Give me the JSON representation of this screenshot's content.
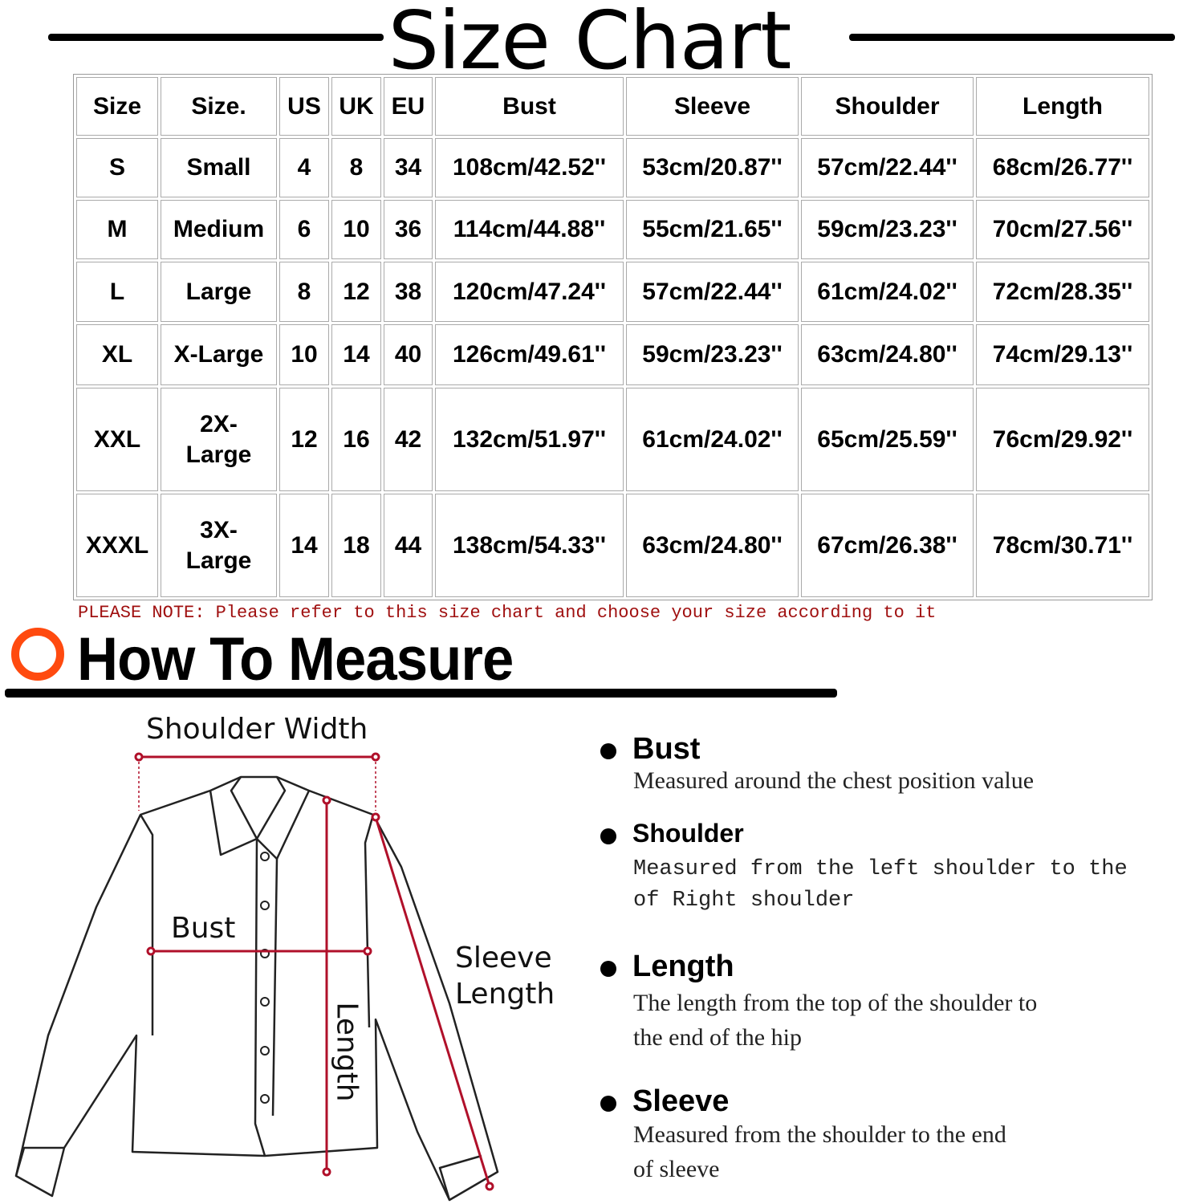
{
  "title": "Size Chart",
  "table": {
    "headers": [
      "Size",
      "Size.",
      "US",
      "UK",
      "EU",
      "Bust",
      "Sleeve",
      "Shoulder",
      "Length"
    ],
    "rows": [
      [
        "S",
        "Small",
        "4",
        "8",
        "34",
        "108cm/42.52''",
        "53cm/20.87''",
        "57cm/22.44''",
        "68cm/26.77''"
      ],
      [
        "M",
        "Medium",
        "6",
        "10",
        "36",
        "114cm/44.88''",
        "55cm/21.65''",
        "59cm/23.23''",
        "70cm/27.56''"
      ],
      [
        "L",
        "Large",
        "8",
        "12",
        "38",
        "120cm/47.24''",
        "57cm/22.44''",
        "61cm/24.02''",
        "72cm/28.35''"
      ],
      [
        "XL",
        "X-Large",
        "10",
        "14",
        "40",
        "126cm/49.61''",
        "59cm/23.23''",
        "63cm/24.80''",
        "74cm/29.13''"
      ],
      [
        "XXL",
        "2X-\nLarge",
        "12",
        "16",
        "42",
        "132cm/51.97''",
        "61cm/24.02''",
        "65cm/25.59''",
        "76cm/29.92''"
      ],
      [
        "XXXL",
        "3X-\nLarge",
        "14",
        "18",
        "44",
        "138cm/54.33''",
        "63cm/24.80''",
        "67cm/26.38''",
        "78cm/30.71''"
      ]
    ]
  },
  "note": "PLEASE NOTE: Please refer to this size chart and choose your size according to it",
  "how_to": {
    "title": "How To Measure",
    "accent": "#ff4a0f"
  },
  "diagram": {
    "shoulder_width": "Shoulder Width",
    "bust": "Bust",
    "sleeve_length_1": "Sleeve",
    "sleeve_length_2": "Length",
    "length": "Length",
    "measure_color": "#b0102a"
  },
  "descriptions": [
    {
      "title": "Bust",
      "lines": [
        "Measured around the chest position value"
      ]
    },
    {
      "title": "Shoulder",
      "lines": [
        "Measured from the left shoulder to the",
        "of Right shoulder"
      ]
    },
    {
      "title": "Length",
      "lines": [
        "The length from the top of the shoulder to",
        "the end of the hip"
      ]
    },
    {
      "title": "Sleeve",
      "lines": [
        "Measured from the shoulder to the end",
        "of sleeve"
      ]
    }
  ]
}
